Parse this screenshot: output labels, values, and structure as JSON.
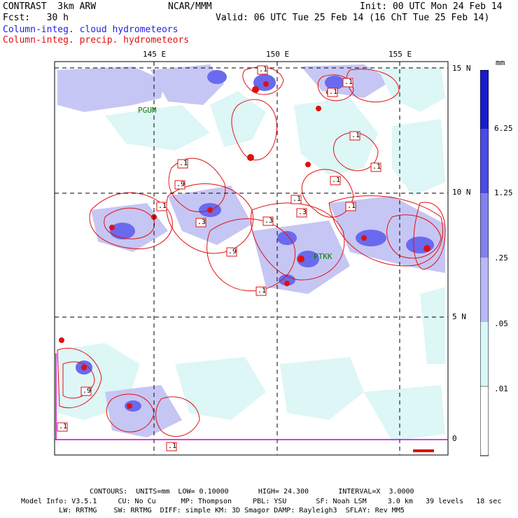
{
  "header": {
    "left_line1": "CONTRAST  3km ARW",
    "center_line1": "NCAR/MMM",
    "right_line1": "Init: 00 UTC Mon 24 Feb 14",
    "left_line2": "Fcst:   30 h",
    "right_line2": "Valid: 06 UTC Tue 25 Feb 14 (16 ChT Tue 25 Feb 14)",
    "field1": "Column-integ. cloud hydrometeors",
    "field2": "Column-integ. precip. hydrometeors"
  },
  "axes": {
    "lon_ticks": [
      "145 E",
      "150 E",
      "155 E"
    ],
    "lat_ticks": [
      "15 N",
      "10 N",
      "5 N",
      "0"
    ]
  },
  "stations": [
    "PGUM",
    "PTKK"
  ],
  "colorbar": {
    "unit": "mm",
    "labels": [
      "6.25",
      "1.25",
      ".25",
      ".05",
      ".01"
    ],
    "colors": [
      "#1a1ad0",
      "#4a4ae8",
      "#8080f0",
      "#b8b8f8",
      "#d8f8f8",
      "#ffffff"
    ]
  },
  "contour_labels": [
    ".1",
    ".9",
    ".1",
    ".3",
    ".3",
    ".9",
    ".1",
    ".1",
    ".3",
    ".1",
    ".1",
    ".1",
    ".1",
    ".1",
    ".1",
    ".1",
    ".1",
    ".1",
    ".9"
  ],
  "footer": {
    "contours": "CONTOURS:  UNITS=mm  LOW= 0.10000       HIGH= 24.300       INTERVAL=X  3.0000",
    "model_line1": "Model Info: V3.5.1     CU: No Cu      MP: Thompson     PBL: YSU       SF: Noah LSM     3.0 km   39 levels   18 sec",
    "model_line2": "         LW: RRTMG    SW: RRTMG  DIFF: simple KM: 3D Smagor DAMP: Rayleigh3  SFLAY: Rev MM5"
  }
}
